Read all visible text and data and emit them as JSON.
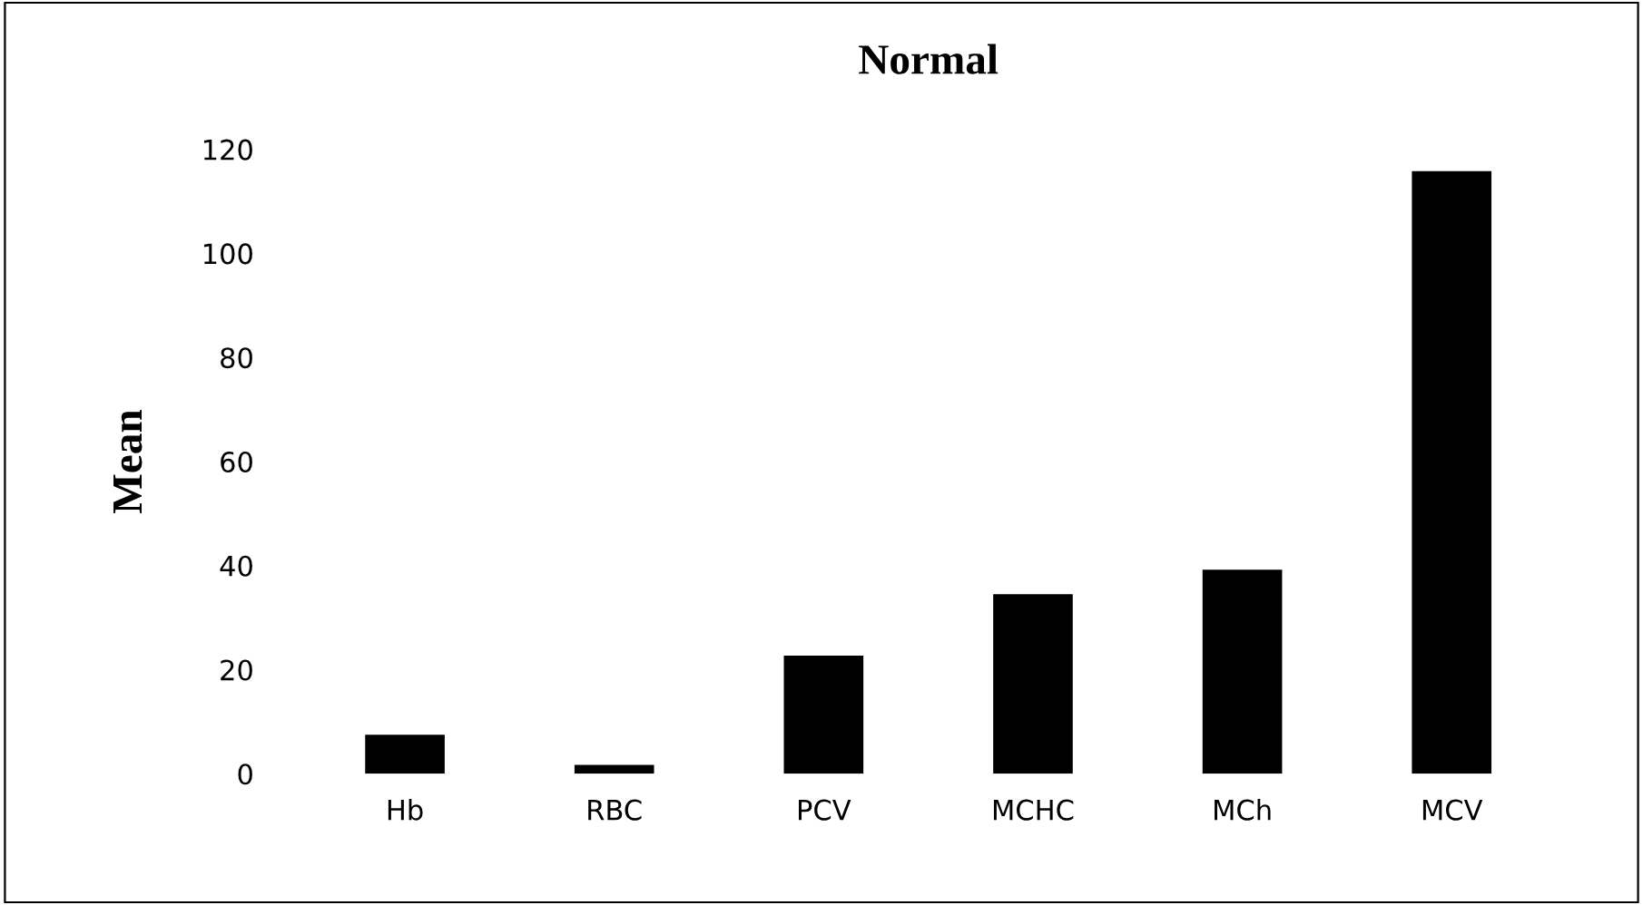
{
  "chart_data": {
    "type": "bar",
    "title": "Normal",
    "ylabel": "Mean",
    "categories": [
      "Hb",
      "RBC",
      "PCV",
      "MCHC",
      "MCh",
      "MCV"
    ],
    "values": [
      7.5,
      1.7,
      22.7,
      34.5,
      39.2,
      115.8
    ],
    "color": "#000000",
    "ylim": [
      0,
      120
    ],
    "yticks": [
      0,
      20,
      40,
      60,
      80,
      100,
      120
    ],
    "grid": false
  }
}
